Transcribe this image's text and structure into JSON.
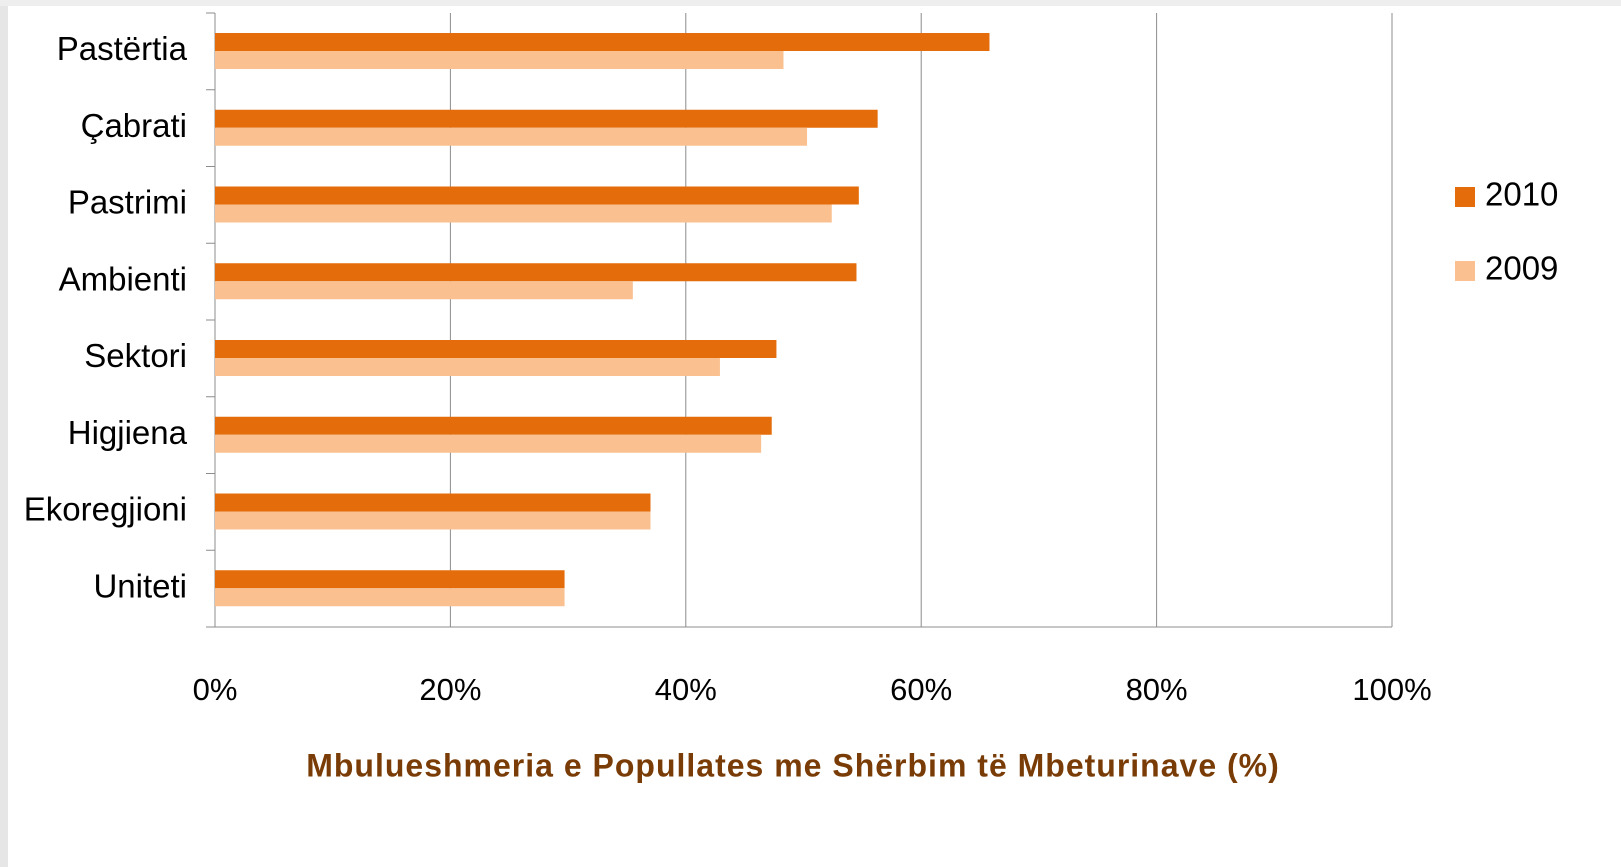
{
  "chart_data": {
    "type": "barh",
    "xlabel": "Mbulueshmeria e Popullates me Shërbim të Mbeturinave (%)",
    "categories": [
      "Pastërtia",
      "Çabrati",
      "Pastrimi",
      "Ambienti",
      "Sektori",
      "Higjiena",
      "Ekoregjioni",
      "Uniteti"
    ],
    "series": [
      {
        "name": "2010",
        "color": "#e46c0a",
        "values": [
          65.8,
          56.3,
          54.7,
          54.5,
          47.7,
          47.3,
          37,
          29.7
        ]
      },
      {
        "name": "2009",
        "color": "#fac090",
        "values": [
          48.3,
          50.3,
          52.4,
          35.5,
          42.9,
          46.4,
          37,
          29.7
        ]
      }
    ],
    "xlim": [
      0,
      100
    ],
    "xticks": [
      {
        "value": 0,
        "label": "0%"
      },
      {
        "value": 20,
        "label": "20%"
      },
      {
        "value": 40,
        "label": "40%"
      },
      {
        "value": 60,
        "label": "60%"
      },
      {
        "value": 80,
        "label": "80%"
      },
      {
        "value": 100,
        "label": "100%"
      }
    ],
    "grid": true,
    "legend": "right"
  }
}
